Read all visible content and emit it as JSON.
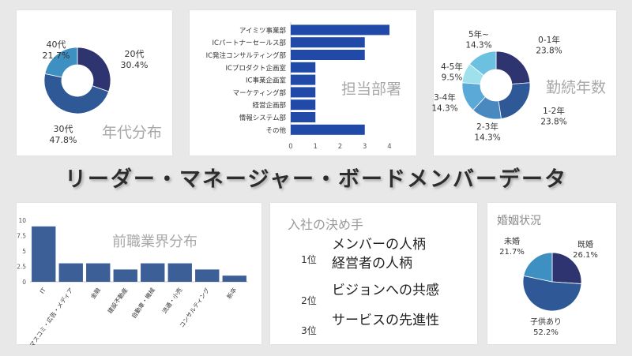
{
  "main_title": "リーダー・マネージャー・ボードメンバーデータ",
  "colors": {
    "navy": "#2e3470",
    "mid_blue": "#2f5996",
    "royal": "#2f55a8",
    "steel": "#4f82b8",
    "sky": "#5aa3d0",
    "light": "#79c4e0",
    "pale": "#9ee0ec",
    "dark_teal": "#2b87b8",
    "bar_blue": "#2049a8",
    "bar_steel": "#3c5f97",
    "watermark": "#a8a8a8"
  },
  "age": {
    "watermark": "年代分布",
    "chart_data": {
      "type": "pie",
      "donut": true,
      "title": "年代分布",
      "slices": [
        {
          "name": "20代",
          "value": 30.4,
          "label_value": "30.4%",
          "color": "#2e3470"
        },
        {
          "name": "30代",
          "value": 47.8,
          "label_value": "47.8%",
          "color": "#2f5996"
        },
        {
          "name": "40代",
          "value": 21.7,
          "label_value": "21.7%",
          "color": "#3e8fc2"
        }
      ]
    }
  },
  "dept": {
    "watermark": "担当部署",
    "chart_data": {
      "type": "bar",
      "orientation": "horizontal",
      "title": "担当部署",
      "categories": [
        "アイミツ事業部",
        "ICパートナーセールス部",
        "IC発注コンサルティング部",
        "ICプロダクト企画室",
        "IC事業企画室",
        "マーケティング部",
        "経営企画部",
        "情報システム部",
        "その他"
      ],
      "values": [
        4,
        3,
        3,
        1,
        1,
        1,
        1,
        1,
        3
      ],
      "xlim": [
        0,
        4
      ],
      "xticks": [
        "0",
        "1",
        "2",
        "3",
        "4"
      ]
    }
  },
  "tenure": {
    "watermark": "勤続年数",
    "chart_data": {
      "type": "pie",
      "donut": true,
      "title": "勤続年数",
      "slices": [
        {
          "name": "0-1年",
          "value": 23.8,
          "label_value": "23.8%",
          "color": "#2e3470"
        },
        {
          "name": "1-2年",
          "value": 23.8,
          "label_value": "23.8%",
          "color": "#2f5996"
        },
        {
          "name": "2-3年",
          "value": 14.3,
          "label_value": "14.3%",
          "color": "#4a88c0"
        },
        {
          "name": "3-4年",
          "value": 14.3,
          "label_value": "14.3%",
          "color": "#5aa9d6"
        },
        {
          "name": "4-5年",
          "value": 9.5,
          "label_value": "9.5%",
          "color": "#9ee0ec"
        },
        {
          "name": "5年~",
          "value": 14.3,
          "label_value": "14.3%",
          "color": "#6cc0e0"
        }
      ]
    }
  },
  "industry": {
    "watermark": "前職業界分布",
    "chart_data": {
      "type": "bar",
      "title": "前職業界分布",
      "categories": [
        "IT",
        "マスコミ・広告・メディア",
        "金融",
        "建設不動産",
        "自動車・機械",
        "流通・小売",
        "コンサルティング",
        "新卒"
      ],
      "values": [
        9,
        3,
        3,
        2,
        3,
        3,
        2,
        1
      ],
      "ylim": [
        0,
        10
      ],
      "yticks": [
        "0",
        "2.5",
        "5",
        "7.5",
        "10"
      ]
    }
  },
  "decision": {
    "title": "入社の決め手",
    "ranks": [
      {
        "rank": "1位",
        "lines": [
          "メンバーの人柄",
          "経営者の人柄"
        ],
        "crown_color": "#222222"
      },
      {
        "rank": "2位",
        "lines": [
          "ビジョンへの共感"
        ],
        "crown_color": "#999999"
      },
      {
        "rank": "3位",
        "lines": [
          "サービスの先進性"
        ],
        "crown_color": "#c4c4c4"
      }
    ]
  },
  "marital": {
    "title": "婚姻状況",
    "chart_data": {
      "type": "pie",
      "title": "婚姻状況",
      "slices": [
        {
          "name": "既婚",
          "value": 26.1,
          "label_value": "26.1%",
          "color": "#2e3470"
        },
        {
          "name": "子供あり",
          "value": 52.2,
          "label_value": "52.2%",
          "color": "#2f5996"
        },
        {
          "name": "未婚",
          "value": 21.7,
          "label_value": "21.7%",
          "color": "#3e8fc2"
        }
      ]
    }
  }
}
